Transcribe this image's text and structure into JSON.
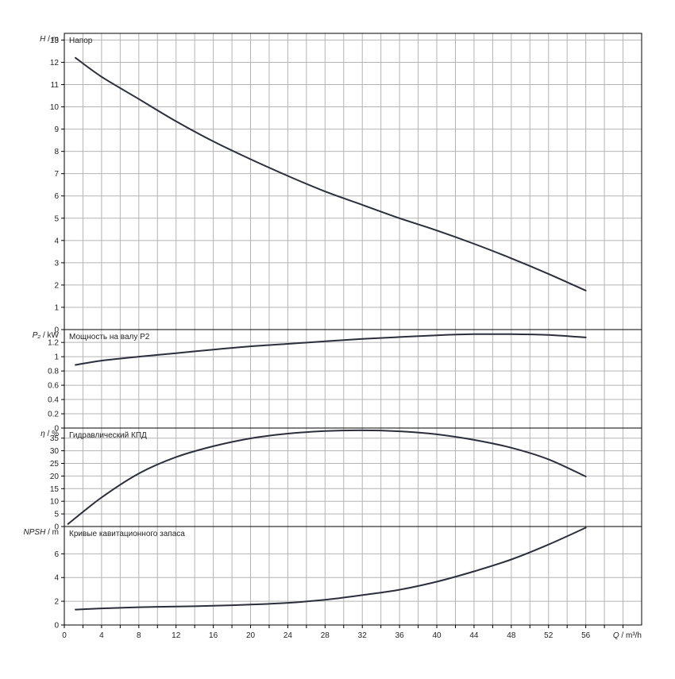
{
  "chart_data": [
    {
      "type": "line",
      "panel_title": "Напор",
      "ylabel_symbol": "H",
      "ylabel_unit": "m",
      "ylim": [
        0,
        13.3
      ],
      "yticks": [
        0,
        1,
        2,
        3,
        4,
        5,
        6,
        7,
        8,
        9,
        10,
        11,
        12,
        13
      ],
      "grid": true,
      "series": [
        {
          "x": [
            1.2,
            4,
            8,
            12,
            16,
            20,
            24,
            28,
            32,
            36,
            40,
            44,
            48,
            52,
            56
          ],
          "y": [
            12.2,
            11.35,
            10.35,
            9.35,
            8.45,
            7.65,
            6.9,
            6.2,
            5.6,
            5.0,
            4.45,
            3.85,
            3.2,
            2.5,
            1.75
          ]
        }
      ]
    },
    {
      "type": "line",
      "panel_title": "Мощность на валу P2",
      "ylabel_symbol": "P₂",
      "ylabel_unit": "kW",
      "ylim": [
        0,
        1.38
      ],
      "yticks": [
        0,
        0.2,
        0.4,
        0.6,
        0.8,
        1,
        1.2
      ],
      "grid": true,
      "series": [
        {
          "x": [
            1.2,
            4,
            8,
            12,
            16,
            20,
            24,
            28,
            32,
            36,
            40,
            44,
            48,
            52,
            56
          ],
          "y": [
            0.885,
            0.945,
            1.0,
            1.05,
            1.1,
            1.145,
            1.18,
            1.215,
            1.25,
            1.275,
            1.3,
            1.315,
            1.315,
            1.305,
            1.27
          ]
        }
      ]
    },
    {
      "type": "line",
      "panel_title": "Гидравлический КПД",
      "ylabel_symbol": "η",
      "ylabel_unit": "%",
      "ylim": [
        0,
        39
      ],
      "yticks": [
        0,
        5,
        10,
        15,
        20,
        25,
        30,
        35
      ],
      "grid": true,
      "series": [
        {
          "x": [
            0.4,
            4,
            8,
            12,
            16,
            20,
            24,
            28,
            32,
            36,
            40,
            44,
            48,
            52,
            56
          ],
          "y": [
            1.0,
            11.5,
            21.0,
            27.5,
            31.8,
            34.9,
            36.8,
            37.8,
            38.1,
            37.7,
            36.5,
            34.3,
            31.2,
            26.6,
            19.8
          ]
        }
      ]
    },
    {
      "type": "line",
      "panel_title": "Кривые кавитационного запаса",
      "ylabel_symbol": "NPSH",
      "ylabel_unit": "m",
      "ylim": [
        0,
        8.3
      ],
      "yticks": [
        0,
        2,
        4,
        6
      ],
      "grid": true,
      "series": [
        {
          "x": [
            1.2,
            4,
            8,
            12,
            16,
            20,
            24,
            28,
            32,
            36,
            40,
            44,
            48,
            52,
            56
          ],
          "y": [
            1.3,
            1.4,
            1.5,
            1.55,
            1.62,
            1.72,
            1.87,
            2.12,
            2.52,
            2.97,
            3.65,
            4.52,
            5.52,
            6.78,
            8.2
          ]
        }
      ]
    }
  ],
  "x_axis": {
    "label_symbol": "Q",
    "label_unit": "m³/h",
    "xlim": [
      0,
      62
    ],
    "tick_labels": [
      0,
      4,
      8,
      12,
      16,
      20,
      24,
      28,
      32,
      36,
      40,
      44,
      48,
      52,
      56
    ],
    "minor_step": 2
  },
  "colors": {
    "curve": "#2b2f3c",
    "grid": "#b4b4b4",
    "frame": "#000000"
  }
}
